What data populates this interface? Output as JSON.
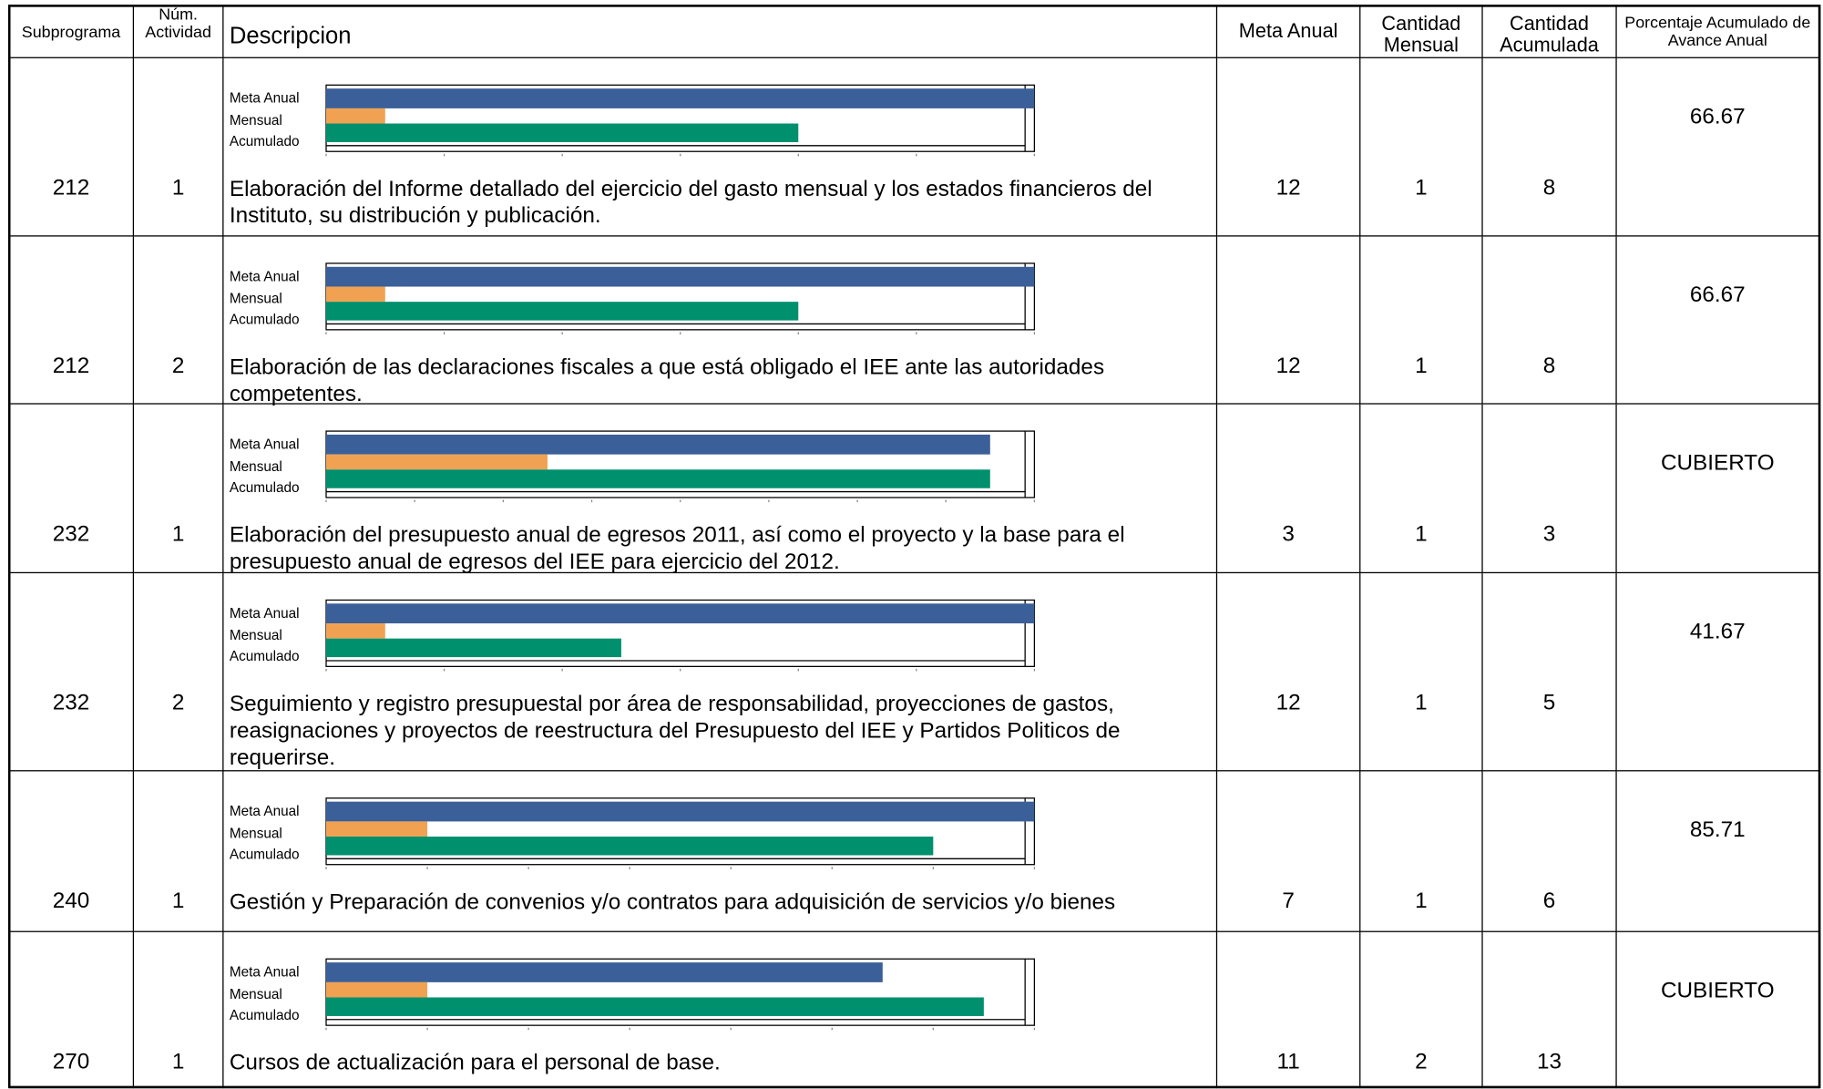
{
  "header": {
    "subprograma": "Subprograma",
    "actividad": "Núm. Actividad",
    "descripcion": "Descripcion",
    "meta": "Meta Anual",
    "mensual": "Cantidad Mensual",
    "acumulada": "Cantidad Acumulada",
    "porcentaje": "Porcentaje Acumulado de Avance Anual"
  },
  "chart_labels": [
    "Meta Anual",
    "Mensual",
    "Acumulado"
  ],
  "colors": [
    "#3b5f98",
    "#f0a252",
    "#00906e"
  ],
  "rows": [
    {
      "subprograma": 212,
      "actividad": 1,
      "descripcion": "Elaboración del Informe detallado del ejercicio del gasto mensual y los estados financieros del Instituto, su distribución y publicación.",
      "meta": 12,
      "mensual": 1,
      "acumulada": 8,
      "porcentaje": 66.67,
      "xlim": [
        0,
        12
      ],
      "xticks": [
        0,
        2,
        4,
        6,
        8,
        10,
        12
      ]
    },
    {
      "subprograma": 212,
      "actividad": 2,
      "descripcion": "Elaboración de las declaraciones fiscales a que está obligado el IEE ante las autoridades competentes.",
      "meta": 12,
      "mensual": 1,
      "acumulada": 8,
      "porcentaje": 66.67,
      "xlim": [
        0,
        12
      ],
      "xticks": [
        0,
        2,
        4,
        6,
        8,
        10,
        12
      ]
    },
    {
      "subprograma": 232,
      "actividad": 1,
      "descripcion": "Elaboración del presupuesto anual de egresos 2011, así como el proyecto y la base para el presupuesto anual de egresos del IEE para ejercicio del 2012.",
      "meta": 3,
      "mensual": 1,
      "acumulada": 3,
      "porcentaje": "CUBIERTO",
      "xlim": [
        0,
        3.2
      ],
      "xticks": [
        0,
        0.4,
        0.8,
        1.2,
        1.6,
        2,
        2.4,
        2.8,
        3.2
      ]
    },
    {
      "subprograma": 232,
      "actividad": 2,
      "descripcion": "Seguimiento y registro presupuestal por área de responsabilidad, proyecciones de gastos, reasignaciones y proyectos de reestructura del Presupuesto del IEE y Partidos Politicos de requerirse.",
      "meta": 12,
      "mensual": 1,
      "acumulada": 5,
      "porcentaje": 41.67,
      "xlim": [
        0,
        12
      ],
      "xticks": [
        0,
        2,
        4,
        6,
        8,
        10,
        12
      ]
    },
    {
      "subprograma": 240,
      "actividad": 1,
      "descripcion": "Gestión y Preparación de convenios y/o contratos para adquisición de servicios y/o bienes",
      "meta": 7,
      "mensual": 1,
      "acumulada": 6,
      "porcentaje": 85.71,
      "xlim": [
        0,
        7
      ],
      "xticks": [
        0,
        1,
        2,
        3,
        4,
        5,
        6,
        7
      ]
    },
    {
      "subprograma": 270,
      "actividad": 1,
      "descripcion": "Cursos de actualización para el personal de base.",
      "meta": 11,
      "mensual": 2,
      "acumulada": 13,
      "porcentaje": "CUBIERTO",
      "xlim": [
        0,
        14
      ],
      "xticks": [
        0,
        2,
        4,
        6,
        8,
        10,
        12,
        14
      ]
    }
  ]
}
